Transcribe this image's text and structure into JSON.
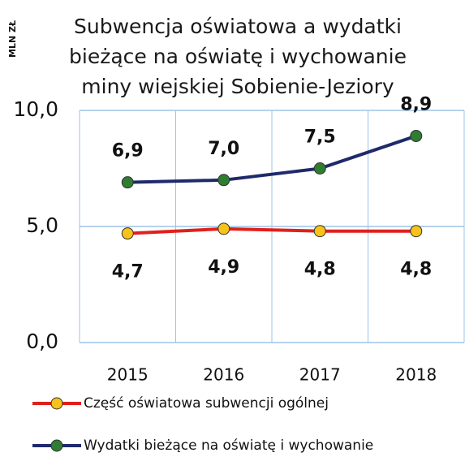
{
  "chart_data": {
    "type": "line",
    "title": "Subwencja oświatowa a wydatki bieżące na oświatę i wychowanie miny wiejskiej Sobienie-Jeziory",
    "y_label": "MLN ZŁ",
    "categories": [
      "2015",
      "2016",
      "2017",
      "2018"
    ],
    "series": [
      {
        "name": "Część oświatowa subwencji ogólnej",
        "color": "#e0201b",
        "marker_color": "#f7c21a",
        "values": [
          4.7,
          4.9,
          4.8,
          4.8
        ],
        "value_labels": [
          "4,7",
          "4,9",
          "4,8",
          "4,8"
        ]
      },
      {
        "name": "Wydatki bieżące na oświatę i wychowanie",
        "color": "#1f2a6b",
        "marker_color": "#2e7d32",
        "values": [
          6.9,
          7.0,
          7.5,
          8.9
        ],
        "value_labels": [
          "6,9",
          "7,0",
          "7,5",
          "8,9"
        ]
      }
    ],
    "ylim": [
      0,
      10
    ],
    "yticks": [
      {
        "value": 0,
        "label": "0,0"
      },
      {
        "value": 5,
        "label": "5,0"
      },
      {
        "value": 10,
        "label": "10,0"
      }
    ],
    "grid": true,
    "legend": "bottom"
  }
}
